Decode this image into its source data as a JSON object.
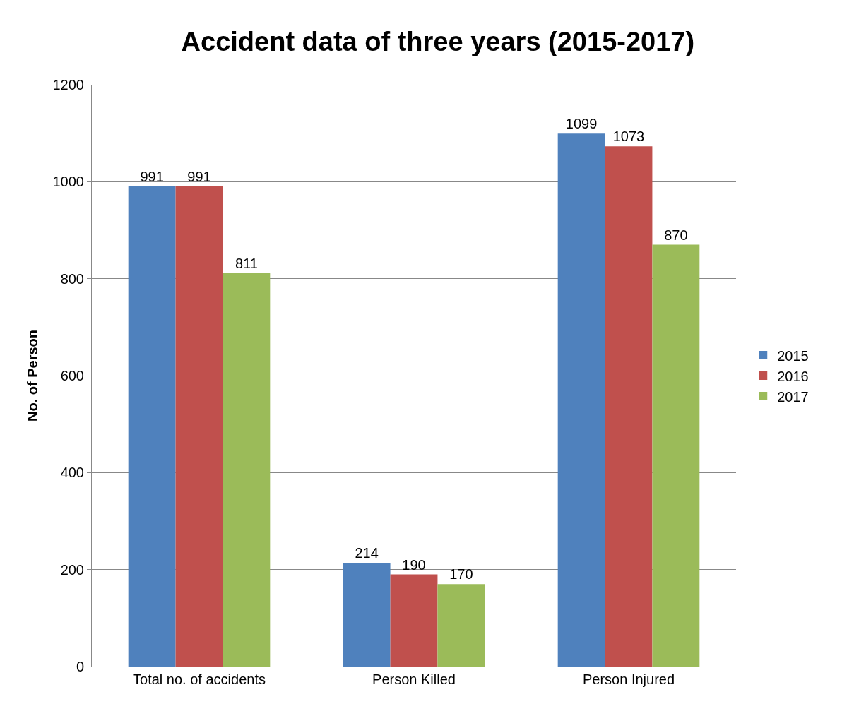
{
  "chart_data": {
    "type": "bar",
    "title": "Accident data of three years (2015-2017)",
    "ylabel": "No. of Person",
    "categories": [
      "Total no. of accidents",
      "Person Killed",
      "Person Injured"
    ],
    "series": [
      {
        "name": "2015",
        "color": "#4f81bd",
        "values": [
          991,
          214,
          1099
        ]
      },
      {
        "name": "2016",
        "color": "#c0504d",
        "values": [
          991,
          190,
          1073
        ]
      },
      {
        "name": "2017",
        "color": "#9bbb59",
        "values": [
          811,
          170,
          870
        ]
      }
    ],
    "ylim": [
      0,
      1200
    ],
    "yticks": [
      0,
      200,
      400,
      600,
      800,
      1000,
      1200
    ],
    "grid": "y",
    "legend": "right",
    "data_labels": true
  }
}
